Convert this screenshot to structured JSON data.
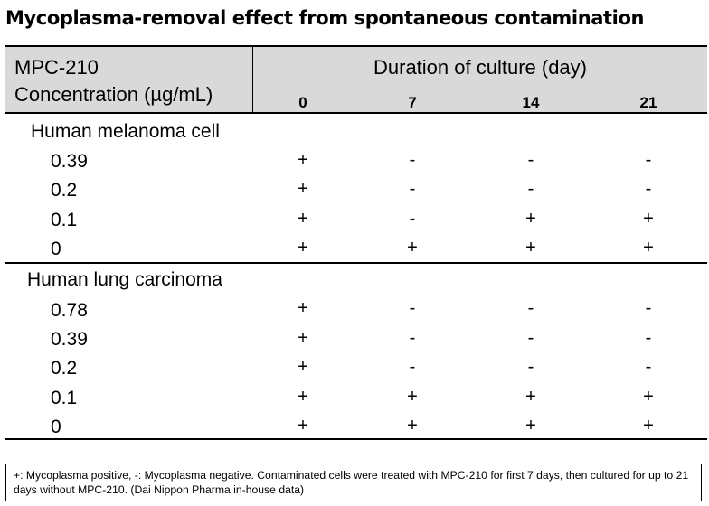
{
  "title": "Mycoplasma-removal effect from spontaneous contamination",
  "header": {
    "concentration_line1": "MPC-210",
    "concentration_line2": "Concentration (µg/mL)",
    "duration_label": "Duration of culture (day)",
    "days": [
      "0",
      "7",
      "14",
      "21"
    ]
  },
  "groups": [
    {
      "name": "Human melanoma cell",
      "rows": [
        {
          "concentration": "0.39",
          "results": [
            "+",
            "-",
            "-",
            "-"
          ]
        },
        {
          "concentration": "0.2",
          "results": [
            "+",
            "-",
            "-",
            "-"
          ]
        },
        {
          "concentration": "0.1",
          "results": [
            "+",
            "-",
            "+",
            "+"
          ]
        },
        {
          "concentration": "0",
          "results": [
            "+",
            "+",
            "+",
            "+"
          ]
        }
      ]
    },
    {
      "name": "Human lung carcinoma",
      "rows": [
        {
          "concentration": "0.78",
          "results": [
            "+",
            "-",
            "-",
            "-"
          ]
        },
        {
          "concentration": "0.39",
          "results": [
            "+",
            "-",
            "-",
            "-"
          ]
        },
        {
          "concentration": "0.2",
          "results": [
            "+",
            "-",
            "-",
            "-"
          ]
        },
        {
          "concentration": "0.1",
          "results": [
            "+",
            "+",
            "+",
            "+"
          ]
        },
        {
          "concentration": "0",
          "results": [
            "+",
            "+",
            "+",
            "+"
          ]
        }
      ]
    }
  ],
  "footnote": "+: Mycoplasma positive, -: Mycoplasma negative. Contaminated cells were treated with MPC-210 for first 7 days, then cultured for up to 21 days without MPC-210. (Dai Nippon Pharma in-house data)"
}
